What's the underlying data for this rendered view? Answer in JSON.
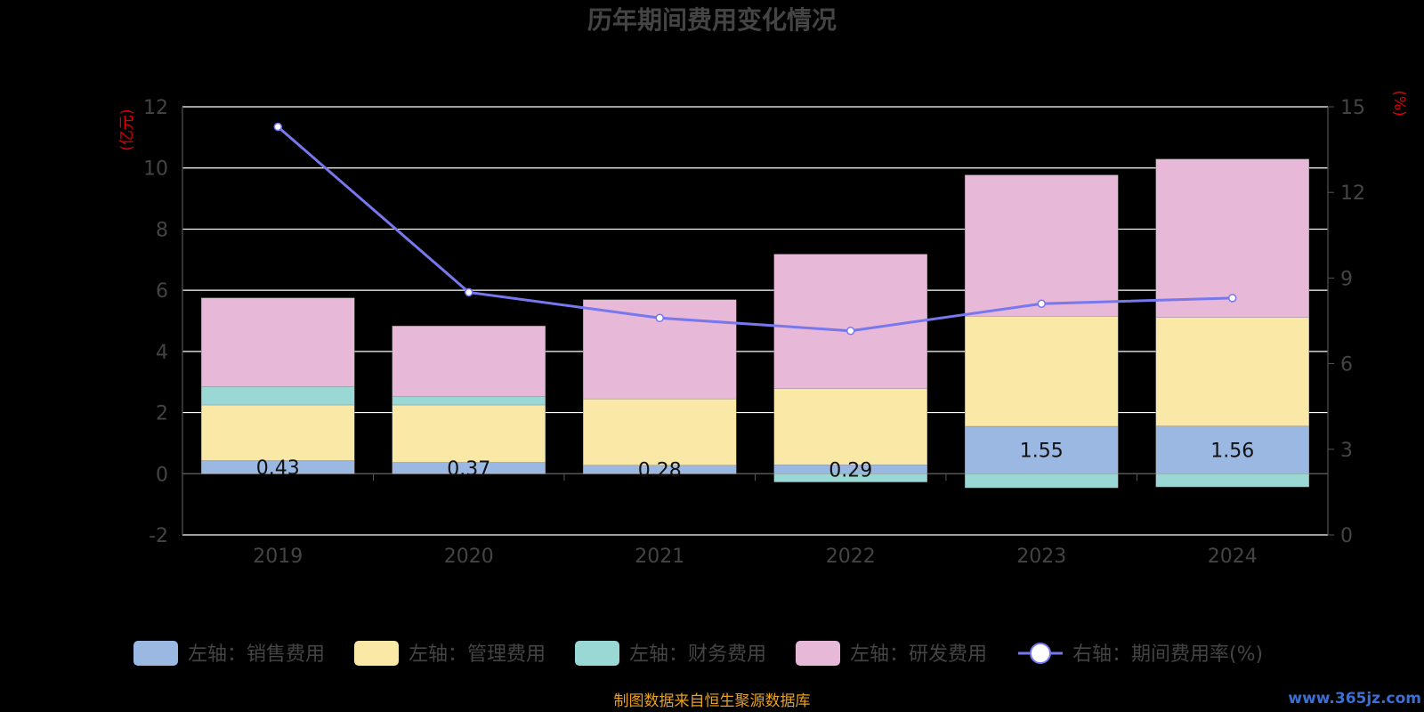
{
  "chart_data": {
    "type": "bar",
    "title": "历年期间费用变化情况",
    "left_unit": "(亿元)",
    "right_unit": "(%)",
    "categories": [
      "2019",
      "2020",
      "2021",
      "2022",
      "2023",
      "2024"
    ],
    "left_axis": {
      "ylim": [
        -2,
        12
      ],
      "ticks": [
        "-2",
        "0",
        "2",
        "4",
        "6",
        "8",
        "10",
        "12"
      ]
    },
    "right_axis": {
      "ylim": [
        0,
        15
      ],
      "ticks": [
        "0",
        "3",
        "6",
        "9",
        "12",
        "15"
      ]
    },
    "series": [
      {
        "name": "左轴：销售费用",
        "type": "bar",
        "color": "#9bb8e3",
        "values": [
          0.43,
          0.37,
          0.28,
          0.29,
          1.55,
          1.56
        ],
        "labels": [
          "0.43",
          "0.37",
          "0.28",
          "0.29",
          "1.55",
          "1.56"
        ]
      },
      {
        "name": "左轴：管理费用",
        "type": "bar",
        "color": "#f9e8a6",
        "values": [
          1.82,
          1.88,
          2.17,
          2.49,
          3.6,
          3.55
        ]
      },
      {
        "name": "左轴：财务费用",
        "type": "bar",
        "color": "#9ad8d6",
        "values": [
          0.6,
          0.28,
          0.0,
          -0.27,
          -0.46,
          -0.43
        ]
      },
      {
        "name": "左轴：研发费用",
        "type": "bar",
        "color": "#e8b8d9",
        "values": [
          2.9,
          2.3,
          3.24,
          4.4,
          4.62,
          5.18
        ]
      },
      {
        "name": "右轴：期间费用率(%)",
        "type": "line",
        "color": "#7777ee",
        "values": [
          14.3,
          8.5,
          7.6,
          7.15,
          8.1,
          8.3
        ]
      }
    ],
    "legend_position": "bottom",
    "grid": true
  },
  "source": "制图数据来自恒生聚源数据库",
  "watermark": "www.365jz.com"
}
